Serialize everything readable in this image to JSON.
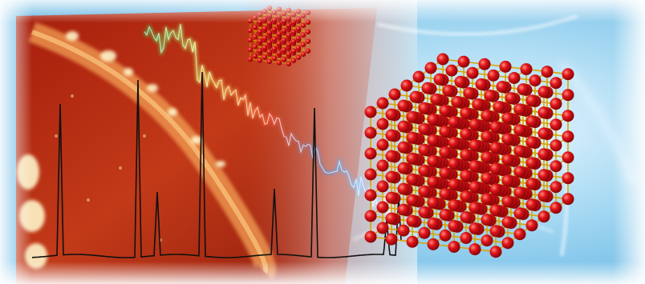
{
  "image": {
    "kind": "composite-banner",
    "visible_text": []
  },
  "palette": {
    "left_bg_dark": "#9c1f0e",
    "left_bg_mid": "#c8401c",
    "left_band": "#e07a2a",
    "right_bg": "#9fd3ef",
    "right_glow": "#e9f6fd",
    "atom_red": "#e0141a",
    "bond_gold": "#d8a400",
    "spectrum_line": "#111111"
  },
  "elements": {
    "spectrum_plot": "black-line-spectrum",
    "colored_spectrum": "rainbow-spectrum",
    "crystal_large": "nanocrystal-lattice",
    "crystal_small": "nanocrystal-lattice-small",
    "surface_topography": "afm-surface"
  }
}
